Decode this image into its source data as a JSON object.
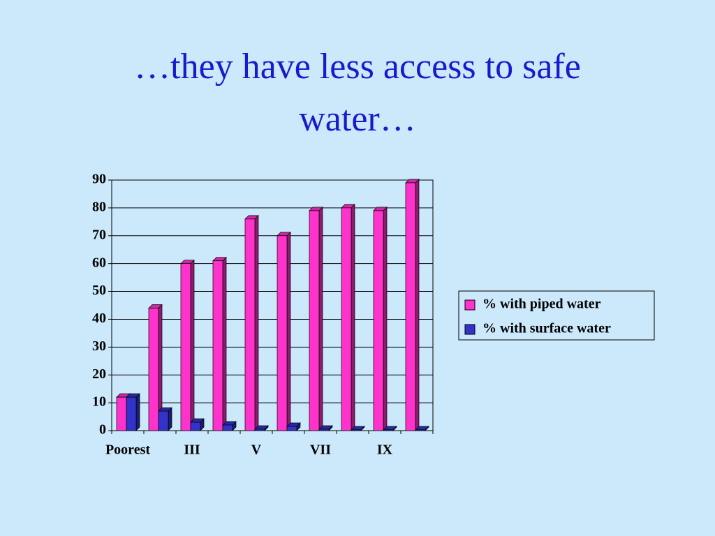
{
  "chart_data": {
    "type": "bar3d",
    "title": "…they have less access to safe water…",
    "categories": [
      "Poorest",
      null,
      "III",
      null,
      "V",
      null,
      "VII",
      null,
      "IX",
      null
    ],
    "series": [
      {
        "name": "% with piped water",
        "color": "#ff33cc",
        "values": [
          12,
          44,
          60,
          61,
          76,
          70,
          79,
          80,
          79,
          89
        ]
      },
      {
        "name": "% with surface water",
        "color": "#3333cc",
        "values": [
          12,
          7,
          3,
          2,
          0.5,
          1.5,
          0.5,
          0.3,
          0.3,
          0.3
        ]
      }
    ],
    "ylim": [
      0,
      90
    ],
    "yticks": [
      0,
      10,
      20,
      30,
      40,
      50,
      60,
      70,
      80,
      90
    ],
    "grid": true,
    "legend": "right"
  }
}
